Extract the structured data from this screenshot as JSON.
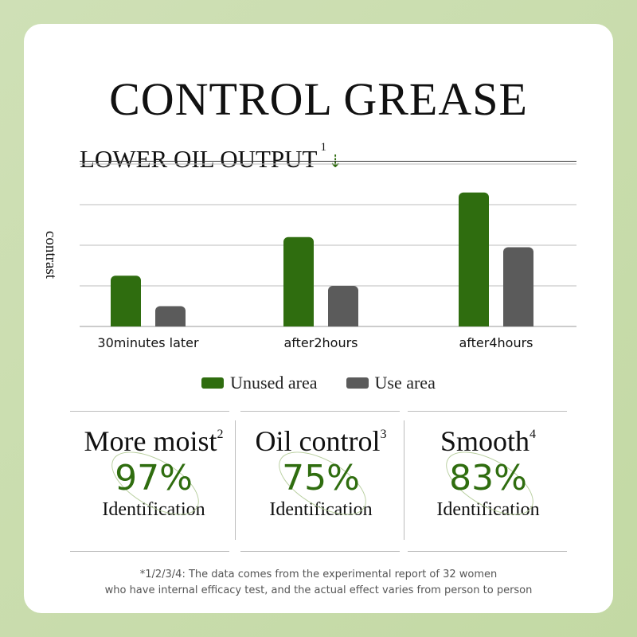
{
  "title": "CONTROL GREASE",
  "subtitle": "LOWER OIL OUTPUT",
  "subtitle_sup": "1",
  "subtitle_arrow": "⇣",
  "colors": {
    "green": "#2f6d0f",
    "gray": "#5b5b5b",
    "accent": "#2f6d0f"
  },
  "chart_data": {
    "type": "bar",
    "categories": [
      "30minutes later",
      "after2hours",
      "after4hours"
    ],
    "series": [
      {
        "name": "Unused area",
        "values": [
          1.25,
          2.2,
          3.3
        ]
      },
      {
        "name": "Use area",
        "values": [
          0.5,
          1.0,
          1.95
        ]
      }
    ],
    "ylabel": "contrast",
    "ylim": [
      0,
      4
    ],
    "grid": true,
    "legend": "bottom"
  },
  "stats": [
    {
      "title": "More moist",
      "sup": "2",
      "value": "97%",
      "label": "Identification"
    },
    {
      "title": "Oil control",
      "sup": "3",
      "value": "75%",
      "label": "Identification"
    },
    {
      "title": "Smooth",
      "sup": "4",
      "value": "83%",
      "label": "Identification"
    }
  ],
  "footnote": {
    "line1": "*1/2/3/4:  The data comes from the experimental report of 32 women",
    "line2": "who have internal efficacy test, and the actual effect varies from person to person"
  }
}
